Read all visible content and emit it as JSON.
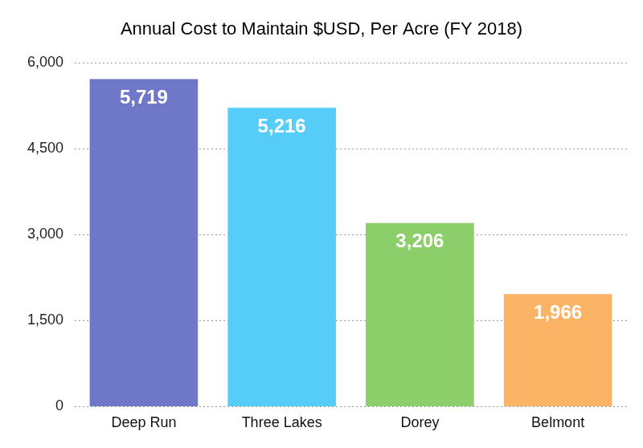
{
  "chart_data": {
    "type": "bar",
    "title": "Annual Cost to Maintain $USD, Per Acre (FY 2018)",
    "categories": [
      "Deep Run",
      "Three Lakes",
      "Dorey",
      "Belmont"
    ],
    "values": [
      5719,
      5216,
      3206,
      1966
    ],
    "value_labels": [
      "5,719",
      "5,216",
      "3,206",
      "1,966"
    ],
    "colors": [
      "#6f78c8",
      "#55cdf8",
      "#8ccf6a",
      "#fbb466"
    ],
    "ylim": [
      0,
      6000
    ],
    "yticks": [
      0,
      {
        "value": 1500,
        "label": "1,500"
      },
      {
        "value": 3000,
        "label": "3,000"
      },
      {
        "value": 4500,
        "label": "4,500"
      },
      {
        "value": 6000,
        "label": "6,000"
      }
    ],
    "grid": true,
    "data_labels": true
  }
}
